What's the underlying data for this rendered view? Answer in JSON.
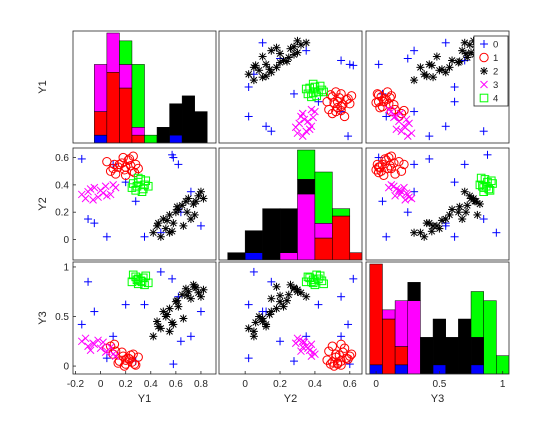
{
  "chart_data": {
    "type": "scatter",
    "variables": [
      "Y1",
      "Y2",
      "Y3"
    ],
    "ranges": {
      "Y1": [
        -0.22,
        0.92
      ],
      "Y2": [
        -0.15,
        0.67
      ],
      "Y3": [
        -0.08,
        1.05
      ]
    },
    "ticks": {
      "Y1": [
        "-0.2",
        "0",
        "0.2",
        "0.4",
        "0.6",
        "0.8"
      ],
      "Y2": [
        "0",
        "0.2",
        "0.4",
        "0.6"
      ],
      "Y3": [
        "0",
        "0.5",
        "1"
      ]
    },
    "tick_values": {
      "Y1": [
        -0.2,
        0,
        0.2,
        0.4,
        0.6,
        0.8
      ],
      "Y2": [
        0,
        0.2,
        0.4,
        0.6
      ],
      "Y3": [
        0,
        0.5,
        1
      ]
    },
    "legend": {
      "position": "top-right",
      "entries": [
        "0",
        "1",
        "2",
        "3",
        "4"
      ]
    },
    "groups": [
      {
        "name": "0",
        "marker": "plus",
        "color": "#0000ff",
        "points": [
          [
            0.57,
            0.62,
            0.88
          ],
          [
            -0.15,
            0.59,
            0.42
          ],
          [
            0.62,
            0.55,
            0.7
          ],
          [
            -0.05,
            0.12,
            0.55
          ],
          [
            0.35,
            0.02,
            0.62
          ],
          [
            0.05,
            0.02,
            0.08
          ],
          [
            0.72,
            0.35,
            0.3
          ],
          [
            -0.1,
            0.15,
            0.85
          ],
          [
            0.48,
            0.05,
            0.95
          ],
          [
            0.8,
            0.1,
            0.55
          ],
          [
            0.64,
            0.2,
            0.25
          ],
          [
            0.28,
            0.28,
            0.05
          ],
          [
            0.1,
            0.55,
            0.3
          ],
          [
            0.58,
            0.6,
            0.02
          ],
          [
            0.2,
            0.42,
            0.62
          ]
        ]
      },
      {
        "name": "1",
        "marker": "circle",
        "color": "#ff0000",
        "points": [
          [
            0.1,
            0.52,
            0.12
          ],
          [
            0.15,
            0.55,
            0.05
          ],
          [
            0.2,
            0.53,
            0.02
          ],
          [
            0.22,
            0.58,
            0.08
          ],
          [
            0.25,
            0.5,
            0.04
          ],
          [
            0.18,
            0.6,
            0.1
          ],
          [
            0.12,
            0.48,
            0.15
          ],
          [
            0.28,
            0.55,
            0.01
          ],
          [
            0.05,
            0.57,
            0.18
          ],
          [
            0.2,
            0.47,
            0.06
          ],
          [
            0.26,
            0.61,
            0.12
          ],
          [
            0.14,
            0.53,
            0.03
          ],
          [
            0.3,
            0.52,
            0.09
          ],
          [
            0.08,
            0.5,
            0.2
          ],
          [
            0.17,
            0.56,
            0.14
          ],
          [
            0.23,
            0.59,
            0.07
          ],
          [
            0.11,
            0.55,
            0.22
          ],
          [
            0.27,
            0.49,
            0.02
          ],
          [
            0.19,
            0.51,
            0.0
          ],
          [
            0.24,
            0.54,
            0.11
          ]
        ]
      },
      {
        "name": "2",
        "marker": "star",
        "color": "#000000",
        "points": [
          [
            0.45,
            0.1,
            0.45
          ],
          [
            0.5,
            0.15,
            0.55
          ],
          [
            0.55,
            0.05,
            0.35
          ],
          [
            0.6,
            0.2,
            0.65
          ],
          [
            0.65,
            0.25,
            0.72
          ],
          [
            0.7,
            0.3,
            0.75
          ],
          [
            0.75,
            0.18,
            0.8
          ],
          [
            0.8,
            0.35,
            0.7
          ],
          [
            0.52,
            0.08,
            0.5
          ],
          [
            0.58,
            0.12,
            0.42
          ],
          [
            0.62,
            0.22,
            0.6
          ],
          [
            0.68,
            0.28,
            0.78
          ],
          [
            0.72,
            0.15,
            0.68
          ],
          [
            0.48,
            0.02,
            0.38
          ],
          [
            0.55,
            0.18,
            0.58
          ],
          [
            0.78,
            0.32,
            0.74
          ],
          [
            0.66,
            0.1,
            0.48
          ],
          [
            0.74,
            0.26,
            0.82
          ],
          [
            0.42,
            0.05,
            0.3
          ],
          [
            0.82,
            0.3,
            0.77
          ],
          [
            0.53,
            0.14,
            0.52
          ],
          [
            0.61,
            0.24,
            0.66
          ],
          [
            0.69,
            0.2,
            0.71
          ],
          [
            0.46,
            0.12,
            0.4
          ],
          [
            0.76,
            0.28,
            0.79
          ],
          [
            0.57,
            0.06,
            0.44
          ]
        ]
      },
      {
        "name": "3",
        "marker": "x",
        "color": "#ff00ff",
        "points": [
          [
            -0.15,
            0.33,
            0.25
          ],
          [
            -0.1,
            0.35,
            0.2
          ],
          [
            -0.05,
            0.38,
            0.22
          ],
          [
            0.0,
            0.36,
            0.18
          ],
          [
            0.05,
            0.32,
            0.15
          ],
          [
            0.1,
            0.4,
            0.12
          ],
          [
            -0.12,
            0.3,
            0.28
          ],
          [
            0.02,
            0.34,
            0.24
          ],
          [
            -0.08,
            0.37,
            0.16
          ],
          [
            0.08,
            0.33,
            0.19
          ],
          [
            -0.02,
            0.31,
            0.26
          ],
          [
            0.12,
            0.38,
            0.1
          ],
          [
            -0.06,
            0.29,
            0.23
          ],
          [
            0.04,
            0.39,
            0.14
          ]
        ]
      },
      {
        "name": "4",
        "marker": "square",
        "color": "#00ff00",
        "points": [
          [
            0.25,
            0.38,
            0.85
          ],
          [
            0.3,
            0.42,
            0.88
          ],
          [
            0.35,
            0.4,
            0.82
          ],
          [
            0.28,
            0.36,
            0.9
          ],
          [
            0.32,
            0.44,
            0.86
          ],
          [
            0.38,
            0.39,
            0.84
          ],
          [
            0.26,
            0.41,
            0.92
          ],
          [
            0.34,
            0.37,
            0.89
          ],
          [
            0.3,
            0.45,
            0.83
          ],
          [
            0.36,
            0.43,
            0.91
          ],
          [
            0.29,
            0.39,
            0.87
          ],
          [
            0.33,
            0.35,
            0.85
          ]
        ]
      }
    ],
    "histograms": {
      "Y1": {
        "bin_edges": [
          -0.15,
          -0.05,
          0.05,
          0.15,
          0.25,
          0.35,
          0.45,
          0.55,
          0.65,
          0.75,
          0.85
        ],
        "counts": {
          "0": [
            0,
            1,
            0,
            0,
            0,
            0,
            0,
            1,
            0,
            0
          ],
          "1": [
            0,
            3,
            9,
            7,
            1,
            0,
            0,
            0,
            0,
            0
          ],
          "3": [
            0,
            6,
            5,
            3,
            1,
            0,
            0,
            0,
            0,
            0
          ],
          "2": [
            0,
            0,
            0,
            0,
            0,
            0,
            2,
            4,
            6,
            4
          ],
          "4": [
            0,
            0,
            0,
            3,
            8,
            1,
            0,
            0,
            0,
            0
          ]
        }
      },
      "Y2": {
        "bin_edges": [
          -0.1,
          0.0,
          0.1,
          0.2,
          0.3,
          0.4,
          0.5,
          0.6,
          0.7
        ],
        "counts": {
          "0": [
            0,
            1,
            0,
            0,
            0,
            0,
            0,
            0
          ],
          "1": [
            0,
            0,
            0,
            0,
            0,
            3,
            6,
            1
          ],
          "3": [
            0,
            0,
            0,
            1,
            9,
            2,
            0,
            0
          ],
          "2": [
            1,
            3,
            7,
            6,
            2,
            0,
            0,
            0
          ],
          "4": [
            0,
            0,
            0,
            0,
            4,
            7,
            1,
            0
          ]
        }
      },
      "Y3": {
        "bin_edges": [
          -0.05,
          0.05,
          0.15,
          0.25,
          0.35,
          0.45,
          0.55,
          0.65,
          0.75,
          0.85,
          0.95,
          1.05
        ],
        "counts": {
          "0": [
            1,
            0,
            1,
            0,
            0,
            1,
            0,
            0,
            1,
            0,
            0
          ],
          "1": [
            11,
            6,
            2,
            0,
            0,
            0,
            0,
            0,
            0,
            0,
            0
          ],
          "3": [
            0,
            1,
            5,
            8,
            0,
            0,
            0,
            0,
            0,
            0,
            0
          ],
          "2": [
            0,
            0,
            0,
            2,
            4,
            5,
            4,
            6,
            3,
            0,
            0
          ],
          "4": [
            0,
            0,
            0,
            0,
            0,
            0,
            0,
            0,
            5,
            8,
            2
          ]
        }
      }
    },
    "hist_stack_order": [
      "0",
      "1",
      "3",
      "2",
      "4"
    ]
  }
}
